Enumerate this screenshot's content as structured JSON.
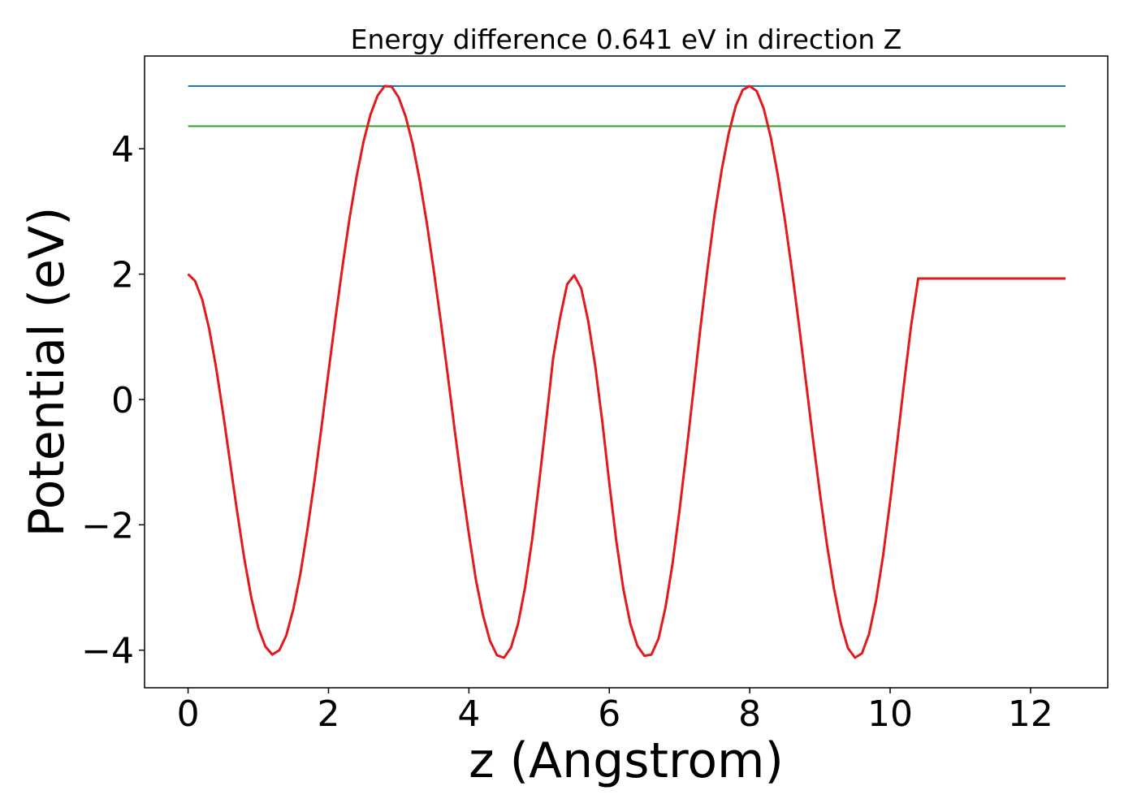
{
  "chart_data": {
    "type": "line",
    "title": "Energy difference 0.641 eV in direction Z",
    "xlabel": "z (Angstrom)",
    "ylabel": "Potential (eV)",
    "xlim": [
      -0.62,
      13.1
    ],
    "ylim": [
      -4.6,
      5.48
    ],
    "xticks": [
      0,
      2,
      4,
      6,
      8,
      10,
      12
    ],
    "xtick_labels": [
      "0",
      "2",
      "4",
      "6",
      "8",
      "10",
      "12"
    ],
    "yticks": [
      -4,
      -2,
      0,
      2,
      4
    ],
    "ytick_labels": [
      "−4",
      "−2",
      "0",
      "2",
      "4"
    ],
    "grid": false,
    "series": [
      {
        "color": "#1f77b4",
        "kind": "hline",
        "x": [
          0,
          12.5
        ],
        "y": [
          5.0,
          5.0
        ]
      },
      {
        "color": "#2ca02c",
        "kind": "hline",
        "x": [
          0,
          12.5
        ],
        "y": [
          4.36,
          4.36
        ]
      },
      {
        "color": "#e31a1c",
        "kind": "curve",
        "x": [
          0,
          0.1,
          0.2,
          0.3,
          0.4,
          0.5,
          0.6,
          0.7,
          0.8,
          0.9,
          1.0,
          1.1,
          1.2,
          1.3,
          1.4,
          1.5,
          1.6,
          1.7,
          1.8,
          1.9,
          2.0,
          2.1,
          2.2,
          2.3,
          2.4,
          2.5,
          2.6,
          2.7,
          2.8,
          2.9,
          3.0,
          3.1,
          3.2,
          3.3,
          3.4,
          3.5,
          3.6,
          3.7,
          3.8,
          3.9,
          4.0,
          4.1,
          4.2,
          4.3,
          4.4,
          4.5,
          4.6,
          4.7,
          4.8,
          4.9,
          5.0,
          5.1,
          5.2,
          5.3,
          5.4,
          5.5,
          5.6,
          5.7,
          5.8,
          5.9,
          6.0,
          6.1,
          6.2,
          6.3,
          6.4,
          6.5,
          6.6,
          6.7,
          6.8,
          6.9,
          7.0,
          7.1,
          7.2,
          7.3,
          7.4,
          7.5,
          7.6,
          7.7,
          7.8,
          7.9,
          8.0,
          8.1,
          8.2,
          8.3,
          8.4,
          8.5,
          8.6,
          8.7,
          8.8,
          8.9,
          9.0,
          9.1,
          9.2,
          9.3,
          9.4,
          9.5,
          9.6,
          9.7,
          9.8,
          9.9,
          10.0,
          10.1,
          10.2,
          10.3,
          10.4,
          10.5,
          10.6,
          10.7,
          10.8,
          10.9,
          11.0,
          11.1,
          11.2,
          11.3,
          11.4,
          11.5,
          11.6,
          11.7,
          11.8,
          11.9,
          12.0,
          12.1,
          12.2,
          12.3,
          12.4,
          12.5
        ],
        "y": [
          2.0,
          1.89,
          1.6,
          1.13,
          0.5,
          -0.23,
          -1.02,
          -1.8,
          -2.53,
          -3.16,
          -3.64,
          -3.94,
          -4.07,
          -4.0,
          -3.76,
          -3.34,
          -2.78,
          -2.08,
          -1.3,
          -0.45,
          0.44,
          1.3,
          2.13,
          2.89,
          3.56,
          4.12,
          4.55,
          4.85,
          5.0,
          4.99,
          4.82,
          4.51,
          4.07,
          3.49,
          2.82,
          2.06,
          1.24,
          0.38,
          -0.51,
          -1.36,
          -2.15,
          -2.88,
          -3.44,
          -3.85,
          -4.08,
          -4.12,
          -3.96,
          -3.58,
          -3.0,
          -2.24,
          -1.33,
          -0.34,
          0.66,
          1.31,
          1.84,
          1.98,
          1.77,
          1.25,
          0.53,
          -0.35,
          -1.34,
          -2.26,
          -3.02,
          -3.58,
          -3.93,
          -4.09,
          -4.07,
          -3.82,
          -3.32,
          -2.62,
          -1.77,
          -0.83,
          0.16,
          1.16,
          2.1,
          2.95,
          3.66,
          4.24,
          4.68,
          4.94,
          5.0,
          4.92,
          4.64,
          4.18,
          3.58,
          2.87,
          2.07,
          1.2,
          0.29,
          -0.62,
          -1.5,
          -2.31,
          -3.02,
          -3.58,
          -3.97,
          -4.12,
          -4.05,
          -3.74,
          -3.21,
          -2.49,
          -1.63,
          -0.69,
          0.27,
          1.19,
          1.93,
          1.93,
          1.93,
          1.93,
          1.93,
          1.93,
          1.93,
          1.93,
          1.93,
          1.93,
          1.93,
          1.93,
          1.93,
          1.93,
          1.93,
          1.93,
          1.93,
          1.93,
          1.93,
          1.93,
          1.93,
          1.93
        ]
      }
    ]
  }
}
